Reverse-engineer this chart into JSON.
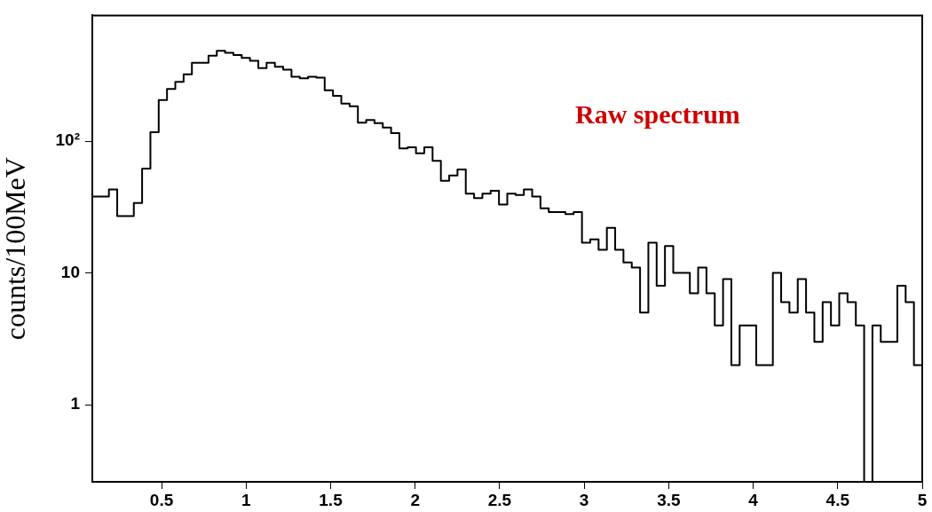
{
  "chart_data": {
    "type": "histogram",
    "ylabel": "counts/100MeV",
    "annotations": [
      "Raw spectrum"
    ],
    "log": true,
    "color": "#000000",
    "bins": [
      0.09,
      0.1391,
      0.1882,
      0.2373,
      0.2864,
      0.3355,
      0.3846,
      0.4337,
      0.4828,
      0.5319,
      0.581,
      0.6301,
      0.6792,
      0.7283,
      0.7774,
      0.8265,
      0.8756,
      0.9247,
      0.9738,
      1.0229,
      1.072,
      1.1211,
      1.1702,
      1.2193,
      1.2684,
      1.3175,
      1.3666,
      1.4157,
      1.4648,
      1.5139,
      1.563,
      1.6121,
      1.6612,
      1.7103,
      1.7594,
      1.8085,
      1.8576,
      1.9067,
      1.9558,
      2.0049,
      2.054,
      2.1031,
      2.1522,
      2.2013,
      2.2504,
      2.2995,
      2.3486,
      2.3977,
      2.4468,
      2.4959,
      2.545,
      2.5941,
      2.6432,
      2.6923,
      2.7414,
      2.7905,
      2.8396,
      2.8887,
      2.9378,
      2.9869,
      3.036,
      3.0851,
      3.1342,
      3.1833,
      3.2324,
      3.2815,
      3.3306,
      3.3797,
      3.4288,
      3.4779,
      3.527,
      3.5761,
      3.6252,
      3.6743,
      3.7234,
      3.7725,
      3.8216,
      3.8707,
      3.9198,
      3.9689,
      4.018,
      4.0671,
      4.1162,
      4.1653,
      4.2144,
      4.2635,
      4.3126,
      4.3617,
      4.4108,
      4.4599,
      4.509,
      4.5581,
      4.6072,
      4.6563,
      4.7054,
      4.7545,
      4.8036,
      4.8527,
      4.9018,
      4.9509,
      5.0
    ],
    "values": [
      38,
      38,
      43,
      27,
      27,
      34,
      62,
      117,
      205,
      249,
      282,
      322,
      393,
      393,
      445,
      486,
      469,
      450,
      428,
      407,
      358,
      393,
      367,
      349,
      308,
      300,
      308,
      303,
      243,
      221,
      193,
      184,
      138,
      145,
      137,
      127,
      115,
      88,
      90,
      81,
      90,
      71,
      50,
      55,
      61,
      40,
      37,
      40,
      42,
      33,
      40,
      39,
      43,
      38,
      31,
      29,
      29,
      28,
      29,
      17,
      18,
      15,
      22,
      15,
      12,
      11,
      5,
      17,
      8,
      16,
      10,
      10,
      7,
      11,
      7,
      4,
      9,
      2,
      4,
      4,
      2,
      2,
      10,
      6,
      5,
      9,
      5,
      3,
      6,
      4,
      7,
      6,
      4,
      null,
      4,
      3,
      3,
      8,
      6,
      2
    ],
    "xlim": [
      0.09,
      5
    ],
    "xticks": [
      0.5,
      1,
      1.5,
      2,
      2.5,
      3,
      3.5,
      4,
      4.5,
      5
    ],
    "ylim": [
      0.26,
      900
    ],
    "yticks": [
      1,
      10,
      {
        "value": 100,
        "label": "10²"
      }
    ]
  }
}
